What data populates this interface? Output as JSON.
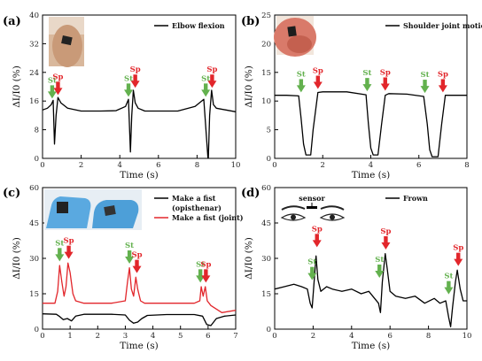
{
  "chart_data": [
    {
      "type": "line",
      "panel_label": "(a)",
      "xlabel": "Time (s)",
      "ylabel": "ΔI/I0 (%)",
      "xlim": [
        0,
        10
      ],
      "ylim": [
        0,
        40
      ],
      "xticks": [
        0,
        2,
        4,
        6,
        8,
        10
      ],
      "yticks": [
        0,
        8,
        16,
        24,
        32,
        40
      ],
      "legend_position": "top-right",
      "series": [
        {
          "name": "Elbow flexion",
          "color": "#000000",
          "x": [
            0,
            0.25,
            0.45,
            0.55,
            0.62,
            0.7,
            0.8,
            0.95,
            1.3,
            2,
            3,
            3.8,
            4.3,
            4.45,
            4.55,
            4.62,
            4.7,
            4.8,
            4.95,
            5.3,
            6,
            7,
            7.9,
            8.35,
            8.5,
            8.58,
            8.65,
            8.75,
            8.85,
            9.0,
            9.5,
            10
          ],
          "values": [
            13.5,
            14,
            15,
            16.2,
            4,
            12,
            17,
            15.5,
            14,
            13.2,
            13.2,
            13.3,
            14.5,
            16.5,
            1.8,
            12,
            19,
            15.5,
            14,
            13.2,
            13.2,
            13.2,
            14.5,
            16.5,
            5,
            -1,
            12,
            19,
            15,
            14,
            13.5,
            13
          ]
        }
      ],
      "annotations": [
        {
          "text": "St",
          "kind": "start",
          "x": 0.5,
          "y": 16.2
        },
        {
          "text": "Sp",
          "kind": "stop",
          "x": 0.8,
          "y": 17.2
        },
        {
          "text": "St",
          "kind": "start",
          "x": 4.45,
          "y": 16.7
        },
        {
          "text": "Sp",
          "kind": "stop",
          "x": 4.8,
          "y": 19.2
        },
        {
          "text": "St",
          "kind": "start",
          "x": 8.45,
          "y": 16.7
        },
        {
          "text": "Sp",
          "kind": "stop",
          "x": 8.78,
          "y": 19.2
        }
      ]
    },
    {
      "type": "line",
      "panel_label": "(b)",
      "xlabel": "Time (s)",
      "ylabel": "ΔI/I0 (%)",
      "xlim": [
        0,
        8
      ],
      "ylim": [
        0,
        25
      ],
      "xticks": [
        0,
        2,
        4,
        6,
        8
      ],
      "yticks": [
        0,
        5,
        10,
        15,
        20,
        25
      ],
      "legend_position": "top-right",
      "series": [
        {
          "name": "Shoulder joint motion",
          "color": "#000000",
          "x": [
            0,
            0.5,
            1.0,
            1.1,
            1.2,
            1.3,
            1.5,
            1.6,
            1.8,
            2,
            3,
            3.8,
            3.9,
            4.0,
            4.1,
            4.3,
            4.45,
            4.6,
            4.75,
            5.5,
            6.2,
            6.35,
            6.45,
            6.55,
            6.8,
            6.95,
            7.1,
            7.3,
            8
          ],
          "values": [
            11,
            11,
            10.9,
            7,
            2.5,
            0.6,
            0.6,
            5,
            11.5,
            11.6,
            11.6,
            11.1,
            6,
            1.8,
            0.6,
            0.6,
            6,
            11,
            11.3,
            11.2,
            10.8,
            6,
            1.5,
            0.3,
            0.3,
            6,
            11,
            11,
            11
          ]
        }
      ],
      "annotations": [
        {
          "text": "St",
          "kind": "start",
          "x": 1.1,
          "y": 11.2
        },
        {
          "text": "Sp",
          "kind": "stop",
          "x": 1.8,
          "y": 11.8
        },
        {
          "text": "St",
          "kind": "start",
          "x": 3.85,
          "y": 11.4
        },
        {
          "text": "Sp",
          "kind": "stop",
          "x": 4.6,
          "y": 11.5
        },
        {
          "text": "St",
          "kind": "start",
          "x": 6.25,
          "y": 11.1
        },
        {
          "text": "Sp",
          "kind": "stop",
          "x": 7.0,
          "y": 11.2
        }
      ]
    },
    {
      "type": "line",
      "panel_label": "(c)",
      "xlabel": "Time (s)",
      "ylabel": "ΔI/I0 (%)",
      "xlim": [
        0,
        7
      ],
      "ylim": [
        0,
        60
      ],
      "xticks": [
        0,
        1,
        2,
        3,
        4,
        5,
        6,
        7
      ],
      "yticks": [
        0,
        15,
        30,
        45,
        60
      ],
      "legend_position": "top-right",
      "series": [
        {
          "name": "Make a fist",
          "legend_line2": "(opisthenar)",
          "color": "#000000",
          "x": [
            0,
            0.5,
            0.6,
            0.75,
            0.9,
            1.05,
            1.2,
            1.5,
            2.5,
            3.0,
            3.15,
            3.3,
            3.45,
            3.6,
            3.8,
            4.5,
            5.5,
            5.8,
            5.95,
            6.1,
            6.3,
            6.6,
            7
          ],
          "values": [
            6.5,
            6.3,
            5.5,
            4,
            4.5,
            3.5,
            5.5,
            6.3,
            6.3,
            6,
            3.8,
            2.5,
            3,
            4.5,
            5.8,
            6.2,
            6.2,
            5.5,
            2,
            1.5,
            4.5,
            5.5,
            6
          ]
        },
        {
          "name": "Make a fist (joint)",
          "color": "#e2262b",
          "x": [
            0,
            0.45,
            0.55,
            0.62,
            0.7,
            0.78,
            0.85,
            0.92,
            1.0,
            1.1,
            1.2,
            1.5,
            2.5,
            3.0,
            3.08,
            3.15,
            3.22,
            3.3,
            3.38,
            3.45,
            3.55,
            3.7,
            4.5,
            5.5,
            5.7,
            5.75,
            5.82,
            5.9,
            5.97,
            6.1,
            6.5,
            7
          ],
          "values": [
            11,
            11,
            16,
            27,
            20,
            14,
            18,
            28,
            24,
            15,
            12,
            11,
            11,
            12,
            20,
            26,
            17,
            14,
            22,
            17,
            12,
            11,
            11,
            11,
            12,
            18,
            14,
            18,
            12,
            10,
            7,
            8
          ]
        }
      ],
      "annotations": [
        {
          "text": "St",
          "kind": "start",
          "x": 0.62,
          "y": 28
        },
        {
          "text": "Sp",
          "kind": "stop",
          "x": 0.95,
          "y": 29
        },
        {
          "text": "St",
          "kind": "start",
          "x": 3.15,
          "y": 27
        },
        {
          "text": "Sp",
          "kind": "stop",
          "x": 3.42,
          "y": 23
        },
        {
          "text": "St",
          "kind": "start",
          "x": 5.72,
          "y": 19
        },
        {
          "text": "Sp",
          "kind": "stop",
          "x": 5.92,
          "y": 19
        }
      ]
    },
    {
      "type": "line",
      "panel_label": "(d)",
      "xlabel": "Time (s)",
      "ylabel": "ΔI/I0 (%)",
      "xlim": [
        0,
        10
      ],
      "ylim": [
        0,
        60
      ],
      "xticks": [
        0,
        2,
        4,
        6,
        8,
        10
      ],
      "yticks": [
        0,
        15,
        30,
        45,
        60
      ],
      "legend_position": "top-right",
      "series": [
        {
          "name": "Frown",
          "color": "#000000",
          "x": [
            0,
            0.5,
            1.0,
            1.4,
            1.7,
            1.85,
            1.95,
            2.05,
            2.15,
            2.25,
            2.4,
            2.7,
            3.0,
            3.5,
            4.0,
            4.5,
            4.9,
            5.2,
            5.4,
            5.5,
            5.6,
            5.75,
            5.85,
            6.0,
            6.3,
            6.8,
            7.3,
            7.8,
            8.3,
            8.6,
            8.9,
            9.05,
            9.15,
            9.25,
            9.4,
            9.5,
            9.65,
            9.8,
            10
          ],
          "values": [
            17,
            18,
            19,
            18,
            17,
            11,
            9,
            20,
            31,
            21,
            16,
            18,
            17,
            16,
            17,
            15,
            16,
            13,
            11,
            7,
            20,
            32,
            26,
            16,
            14,
            13,
            14,
            11,
            13,
            11,
            12,
            5,
            1,
            9,
            20,
            25,
            17,
            12,
            12
          ]
        }
      ],
      "annotations": [
        {
          "text": "St",
          "kind": "start",
          "x": 1.95,
          "y": 20
        },
        {
          "text": "Sp",
          "kind": "stop",
          "x": 2.2,
          "y": 34
        },
        {
          "text": "St",
          "kind": "start",
          "x": 5.45,
          "y": 21
        },
        {
          "text": "Sp",
          "kind": "stop",
          "x": 5.78,
          "y": 33
        },
        {
          "text": "St",
          "kind": "start",
          "x": 9.05,
          "y": 14
        },
        {
          "text": "Sp",
          "kind": "stop",
          "x": 9.55,
          "y": 26
        }
      ],
      "inset_label": "sensor"
    }
  ],
  "colors": {
    "start_arrow": "#63b14e",
    "stop_arrow": "#e2262b"
  }
}
